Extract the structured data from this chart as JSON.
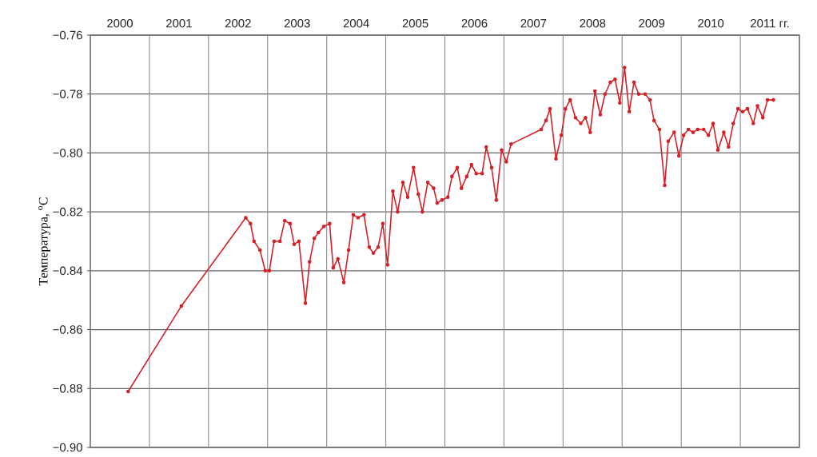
{
  "chart_data": {
    "type": "line",
    "xlim": [
      2000,
      2012
    ],
    "xticks": [
      {
        "value": 2000,
        "label": null
      },
      {
        "value": 2001,
        "label": null
      },
      {
        "value": 2002,
        "label": null
      },
      {
        "value": 2003,
        "label": null
      },
      {
        "value": 2004,
        "label": null
      },
      {
        "value": 2005,
        "label": null
      },
      {
        "value": 2006,
        "label": null
      },
      {
        "value": 2007,
        "label": null
      },
      {
        "value": 2008,
        "label": null
      },
      {
        "value": 2009,
        "label": null
      },
      {
        "value": 2010,
        "label": null
      },
      {
        "value": 2011,
        "label": null
      },
      {
        "value": 2012,
        "label": null
      },
      {
        "value": 2000.5,
        "label": "2000"
      },
      {
        "value": 2001.5,
        "label": "2001"
      },
      {
        "value": 2002.5,
        "label": "2002"
      },
      {
        "value": 2003.5,
        "label": "2003"
      },
      {
        "value": 2004.5,
        "label": "2004"
      },
      {
        "value": 2005.5,
        "label": "2005"
      },
      {
        "value": 2006.5,
        "label": "2006"
      },
      {
        "value": 2007.5,
        "label": "2007"
      },
      {
        "value": 2008.5,
        "label": "2008"
      },
      {
        "value": 2009.5,
        "label": "2009"
      },
      {
        "value": 2010.5,
        "label": "2010"
      },
      {
        "value": 2011.5,
        "label": "2011 гг."
      }
    ],
    "ylim": [
      -0.9,
      -0.76
    ],
    "yticks": [
      {
        "value": -0.76,
        "label": "−0.76"
      },
      {
        "value": -0.78,
        "label": "−0.78"
      },
      {
        "value": -0.8,
        "label": "−0.80"
      },
      {
        "value": -0.82,
        "label": "−0.82"
      },
      {
        "value": -0.84,
        "label": "−0.84"
      },
      {
        "value": -0.86,
        "label": "−0.86"
      },
      {
        "value": -0.88,
        "label": "−0.88"
      },
      {
        "value": -0.9,
        "label": "−0.90"
      }
    ],
    "ylabel": "Температура, $^{o}$C",
    "grid": true,
    "marker": "circle",
    "line_style": "solid",
    "series": [
      {
        "color": "#d62028",
        "x": [
          2000.64,
          2001.54,
          2002.63,
          2002.71,
          2002.77,
          2002.87,
          2002.96,
          2003.03,
          2003.11,
          2003.21,
          2003.29,
          2003.38,
          2003.45,
          2003.53,
          2003.64,
          2003.71,
          2003.79,
          2003.86,
          2003.95,
          2004.05,
          2004.11,
          2004.19,
          2004.29,
          2004.37,
          2004.45,
          2004.53,
          2004.63,
          2004.72,
          2004.79,
          2004.87,
          2004.95,
          2005.03,
          2005.12,
          2005.2,
          2005.29,
          2005.37,
          2005.47,
          2005.55,
          2005.62,
          2005.71,
          2005.81,
          2005.87,
          2005.95,
          2006.05,
          2006.12,
          2006.21,
          2006.28,
          2006.37,
          2006.45,
          2006.53,
          2006.63,
          2006.7,
          2006.79,
          2006.87,
          2006.96,
          2007.04,
          2007.12,
          2007.63,
          2007.71,
          2007.78,
          2007.88,
          2007.97,
          2008.04,
          2008.12,
          2008.21,
          2008.3,
          2008.38,
          2008.46,
          2008.54,
          2008.63,
          2008.71,
          2008.8,
          2008.88,
          2008.96,
          2009.04,
          2009.12,
          2009.2,
          2009.28,
          2009.39,
          2009.47,
          2009.54,
          2009.63,
          2009.72,
          2009.78,
          2009.88,
          2009.96,
          2010.04,
          2010.12,
          2010.2,
          2010.28,
          2010.38,
          2010.46,
          2010.54,
          2010.62,
          2010.72,
          2010.8,
          2010.88,
          2010.96,
          2011.04,
          2011.12,
          2011.22,
          2011.29,
          2011.38,
          2011.46,
          2011.56
        ],
        "values": [
          -0.881,
          -0.852,
          -0.822,
          -0.824,
          -0.83,
          -0.833,
          -0.84,
          -0.84,
          -0.83,
          -0.83,
          -0.823,
          -0.824,
          -0.831,
          -0.83,
          -0.851,
          -0.837,
          -0.829,
          -0.827,
          -0.825,
          -0.824,
          -0.839,
          -0.836,
          -0.844,
          -0.833,
          -0.821,
          -0.822,
          -0.821,
          -0.832,
          -0.834,
          -0.832,
          -0.824,
          -0.838,
          -0.813,
          -0.82,
          -0.81,
          -0.815,
          -0.805,
          -0.814,
          -0.82,
          -0.81,
          -0.812,
          -0.817,
          -0.816,
          -0.815,
          -0.808,
          -0.805,
          -0.812,
          -0.808,
          -0.804,
          -0.807,
          -0.807,
          -0.798,
          -0.805,
          -0.816,
          -0.799,
          -0.803,
          -0.797,
          -0.792,
          -0.789,
          -0.785,
          -0.802,
          -0.794,
          -0.785,
          -0.782,
          -0.788,
          -0.79,
          -0.788,
          -0.793,
          -0.779,
          -0.787,
          -0.78,
          -0.776,
          -0.775,
          -0.783,
          -0.771,
          -0.786,
          -0.776,
          -0.78,
          -0.78,
          -0.782,
          -0.789,
          -0.792,
          -0.811,
          -0.796,
          -0.793,
          -0.801,
          -0.794,
          -0.792,
          -0.793,
          -0.792,
          -0.792,
          -0.794,
          -0.79,
          -0.799,
          -0.793,
          -0.798,
          -0.79,
          -0.785,
          -0.786,
          -0.785,
          -0.79,
          -0.784,
          -0.788,
          -0.782,
          -0.782
        ]
      }
    ]
  }
}
